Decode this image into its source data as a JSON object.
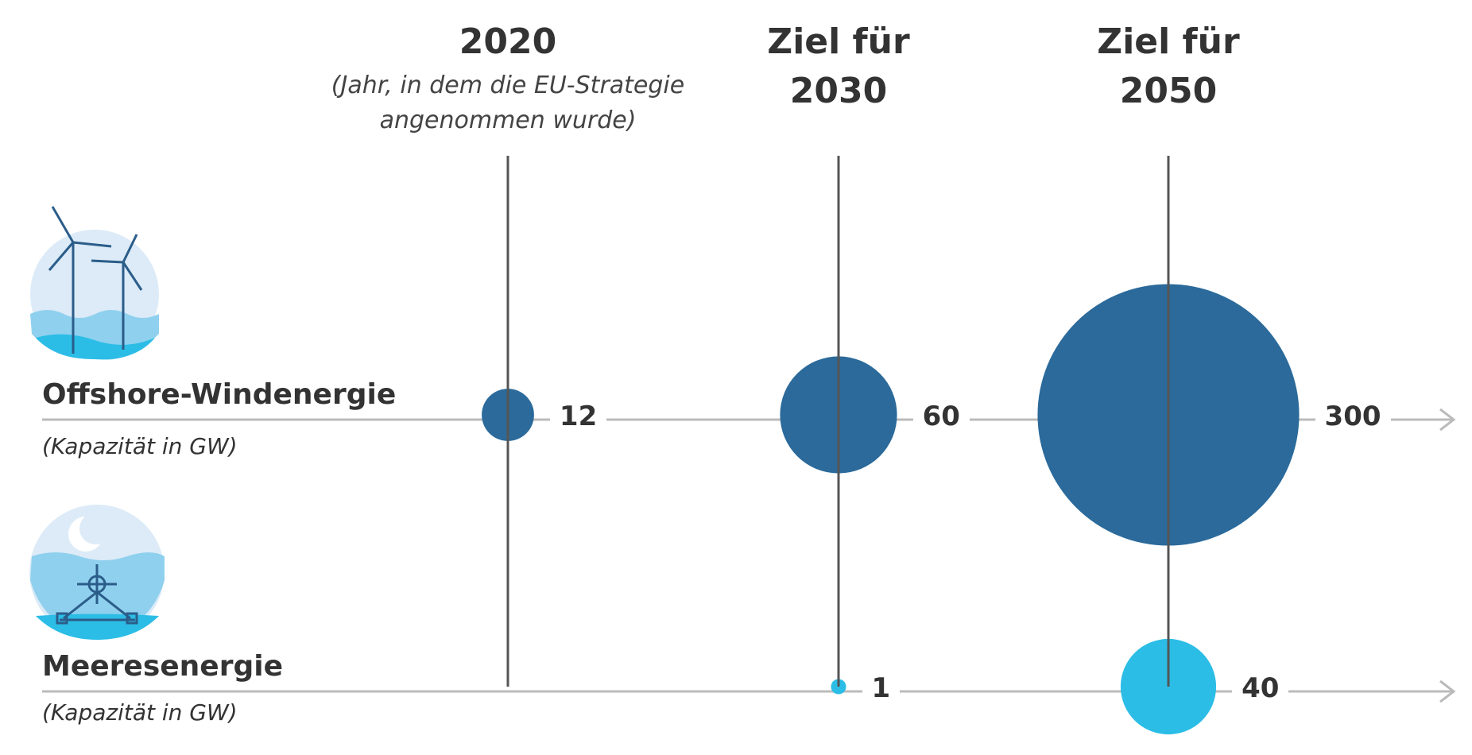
{
  "chart_data": {
    "type": "bubble",
    "categories": [
      "2020",
      "Ziel für 2030",
      "Ziel für 2050"
    ],
    "category_note": "(Jahr, in dem die EU-Strategie angenommen wurde)",
    "series": [
      {
        "name": "Offshore-Windenergie",
        "unit": "(Kapazität in GW)",
        "color": "#2b6a9a",
        "values": [
          12,
          60,
          300
        ]
      },
      {
        "name": "Meeresenergie",
        "unit": "(Kapazität in GW)",
        "color": "#2bbde6",
        "values": [
          null,
          1,
          40
        ]
      }
    ]
  }
}
